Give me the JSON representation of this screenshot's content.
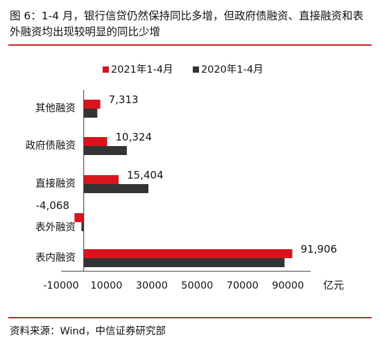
{
  "title": "图 6：1-4 月，银行信贷仍然保持同比多增，但政府债融资、直接融资和表外融资均出现较明显的同比少增",
  "source": "资料来源：Wind，中信证券研究部",
  "colors": {
    "series_2021": "#d9141c",
    "series_2020": "#333333",
    "rule": "#c0282d"
  },
  "chart_data": {
    "type": "bar",
    "orientation": "horizontal",
    "categories": [
      "其他融资",
      "政府债融资",
      "直接融资",
      "表外融资",
      "表内融资"
    ],
    "series": [
      {
        "name": "2021年1-4月",
        "values": [
          7313,
          10324,
          15404,
          -4068,
          91906
        ],
        "labels": [
          "7,313",
          "10,324",
          "15,404",
          "-4,068",
          "91,906"
        ]
      },
      {
        "name": "2020年1-4月",
        "values": [
          6000,
          19000,
          28500,
          -1000,
          88500
        ]
      }
    ],
    "xlim": [
      -10000,
      100000
    ],
    "xticks": [
      -10000,
      10000,
      30000,
      50000,
      70000,
      90000
    ],
    "xtick_labels": [
      "-10000",
      "10000",
      "30000",
      "50000",
      "70000",
      "90000"
    ],
    "xlabel": "亿元",
    "legend_position": "top",
    "grid": false
  }
}
